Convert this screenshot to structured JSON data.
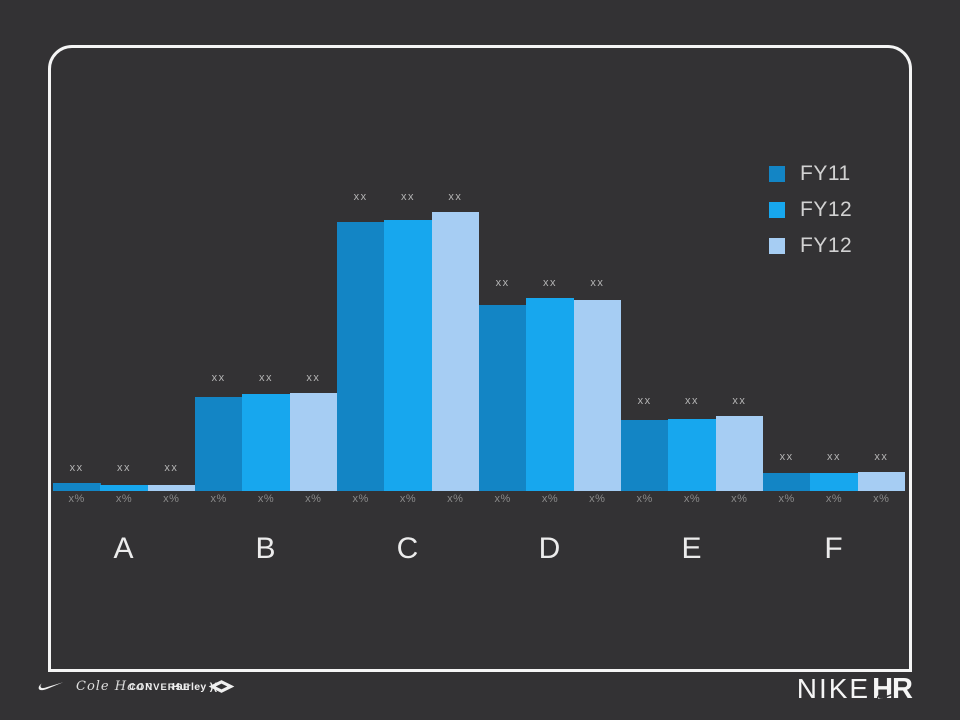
{
  "slide": {
    "background": "#333234",
    "frame_border_color": "#f5f5f5"
  },
  "legend": {
    "position": "top-right",
    "items": [
      {
        "label": "FY11",
        "color": "#1385C5"
      },
      {
        "label": "FY12",
        "color": "#17A7EE"
      },
      {
        "label": "FY12",
        "color": "#A6CDF3"
      }
    ]
  },
  "chart_data": {
    "type": "bar",
    "title": "",
    "xlabel": "",
    "ylabel": "",
    "categories": [
      "A",
      "B",
      "C",
      "D",
      "E",
      "F"
    ],
    "series": [
      {
        "name": "FY11",
        "color": "#1385C5",
        "values": [
          8,
          94,
          269,
          186,
          71,
          18
        ]
      },
      {
        "name": "FY12",
        "color": "#17A7EE",
        "values": [
          6,
          97,
          271,
          193,
          72,
          18
        ]
      },
      {
        "name": "FY12",
        "color": "#A6CDF3",
        "values": [
          6,
          98,
          279,
          191,
          75,
          19
        ]
      }
    ],
    "units": "relative-height-px",
    "ylim": [
      0,
      300
    ],
    "value_label_placeholder": "xx",
    "percent_label_placeholder": "x%",
    "axes_visible": false,
    "gridlines": false,
    "bar_gap": 0,
    "legend_position": "top-right"
  },
  "footer": {
    "cole_haan": "Cole Haan",
    "converse": "CONVERSE",
    "hurley": "Hurley",
    "hurley_icon": ")(",
    "nike_wordmark": "NIKE",
    "hr_wordmark": "HR"
  }
}
